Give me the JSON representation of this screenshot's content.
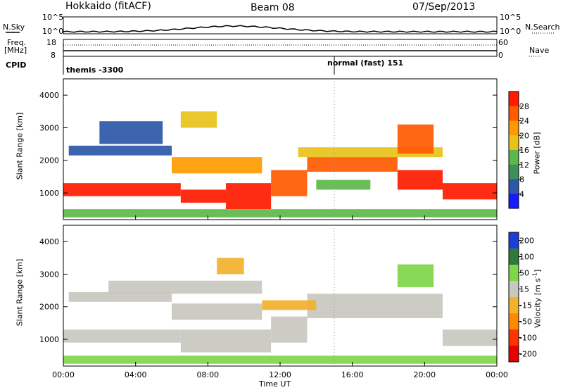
{
  "header": {
    "title": "Hokkaido (fitACF)",
    "beam": "Beam 08",
    "date": "07/Sep/2013"
  },
  "summary": {
    "nsky_label": "N.Sky",
    "nsky_ticks": [
      "10^5",
      "10^0"
    ],
    "nsearch_label": "N.Search",
    "nsearch_ticks": [
      "10^5",
      "10^0"
    ],
    "freq_label": "Freq.",
    "freq_unit": "[MHz]",
    "freq_ticks": [
      "18",
      "8"
    ],
    "nave_label": "Nave",
    "nave_ticks": [
      "60",
      "0"
    ],
    "cpid_label": "CPID",
    "cpid_segments": [
      {
        "label": "themis -3300",
        "start_hour": 0
      },
      {
        "label": "normal (fast) 151",
        "start_hour": 15
      }
    ]
  },
  "x_axis": {
    "label": "Time UT",
    "tick_labels": [
      "00:00",
      "04:00",
      "08:00",
      "12:00",
      "16:00",
      "20:00",
      "00:00"
    ]
  },
  "chart_data": [
    {
      "type": "heatmap",
      "title": "",
      "xlabel": "Time UT",
      "ylabel": "Slant Range [km]",
      "xlim": [
        0,
        24
      ],
      "ylim": [
        180,
        4500
      ],
      "y_tick_labels": [
        "1000",
        "2000",
        "3000",
        "4000"
      ],
      "y_ticks": [
        1000,
        2000,
        3000,
        4000
      ],
      "colorbar": {
        "label": "Power [dB]",
        "ticks": [
          "4",
          "8",
          "12",
          "16",
          "20",
          "24",
          "28"
        ],
        "colors": [
          "#1a1aff",
          "#2c58a8",
          "#3f8f5c",
          "#5cb84a",
          "#e8c21a",
          "#ff9a00",
          "#ff5a00",
          "#ff1a00"
        ]
      },
      "bands": [
        {
          "t0": 0.0,
          "t1": 6.5,
          "r0": 900,
          "r1": 1300,
          "level": 7
        },
        {
          "t0": 6.5,
          "t1": 9.0,
          "r0": 700,
          "r1": 1100,
          "level": 7
        },
        {
          "t0": 9.0,
          "t1": 11.5,
          "r0": 500,
          "r1": 1300,
          "level": 7
        },
        {
          "t0": 11.5,
          "t1": 13.5,
          "r0": 900,
          "r1": 1700,
          "level": 6
        },
        {
          "t0": 13.5,
          "t1": 18.5,
          "r0": 1650,
          "r1": 2100,
          "level": 6
        },
        {
          "t0": 18.5,
          "t1": 21.0,
          "r0": 1100,
          "r1": 1700,
          "level": 7
        },
        {
          "t0": 21.0,
          "t1": 24.0,
          "r0": 800,
          "r1": 1300,
          "level": 7
        },
        {
          "t0": 0.3,
          "t1": 6.0,
          "r0": 2150,
          "r1": 2450,
          "level": 1
        },
        {
          "t0": 2.0,
          "t1": 5.5,
          "r0": 2500,
          "r1": 3200,
          "level": 1
        },
        {
          "t0": 6.0,
          "t1": 11.0,
          "r0": 1600,
          "r1": 2100,
          "level": 5
        },
        {
          "t0": 13.0,
          "t1": 21.0,
          "r0": 2100,
          "r1": 2400,
          "level": 4
        },
        {
          "t0": 18.5,
          "t1": 20.5,
          "r0": 2200,
          "r1": 3100,
          "level": 6
        },
        {
          "t0": 0.0,
          "t1": 24.0,
          "r0": 250,
          "r1": 500,
          "level": 3
        },
        {
          "t0": 6.5,
          "t1": 8.5,
          "r0": 3000,
          "r1": 3500,
          "level": 4
        },
        {
          "t0": 14.0,
          "t1": 17.0,
          "r0": 1100,
          "r1": 1400,
          "level": 3
        }
      ]
    },
    {
      "type": "heatmap",
      "title": "",
      "xlabel": "Time UT",
      "ylabel": "Slant Range [km]",
      "xlim": [
        0,
        24
      ],
      "ylim": [
        180,
        4500
      ],
      "y_tick_labels": [
        "1000",
        "2000",
        "3000",
        "4000"
      ],
      "y_ticks": [
        1000,
        2000,
        3000,
        4000
      ],
      "colorbar": {
        "label": "Velocity [m s^-1]",
        "ticks": [
          "200",
          "100",
          "50",
          "15",
          "-15",
          "-50",
          "-100",
          "-200"
        ],
        "colors": [
          "#1a3fd9",
          "#2f7a3a",
          "#7fd64a",
          "#c8c8c0",
          "#f2b22a",
          "#ff8a00",
          "#ff3300",
          "#e80000"
        ]
      },
      "bands": [
        {
          "t0": 0.0,
          "t1": 6.5,
          "r0": 900,
          "r1": 1300,
          "level": 3
        },
        {
          "t0": 6.5,
          "t1": 11.5,
          "r0": 600,
          "r1": 1300,
          "level": 3
        },
        {
          "t0": 11.5,
          "t1": 13.5,
          "r0": 900,
          "r1": 1700,
          "level": 3
        },
        {
          "t0": 13.5,
          "t1": 21.0,
          "r0": 1650,
          "r1": 2400,
          "level": 3
        },
        {
          "t0": 21.0,
          "t1": 24.0,
          "r0": 800,
          "r1": 1300,
          "level": 3
        },
        {
          "t0": 0.3,
          "t1": 6.0,
          "r0": 2150,
          "r1": 2450,
          "level": 3
        },
        {
          "t0": 2.5,
          "t1": 11.0,
          "r0": 2400,
          "r1": 2800,
          "level": 3
        },
        {
          "t0": 6.0,
          "t1": 11.0,
          "r0": 1600,
          "r1": 2100,
          "level": 3
        },
        {
          "t0": 0.0,
          "t1": 24.0,
          "r0": 250,
          "r1": 500,
          "level": 2
        },
        {
          "t0": 18.5,
          "t1": 20.5,
          "r0": 2600,
          "r1": 3300,
          "level": 2
        },
        {
          "t0": 11.0,
          "t1": 14.0,
          "r0": 1900,
          "r1": 2200,
          "level": 4
        },
        {
          "t0": 8.5,
          "t1": 10.0,
          "r0": 3000,
          "r1": 3500,
          "level": 4
        }
      ]
    }
  ]
}
